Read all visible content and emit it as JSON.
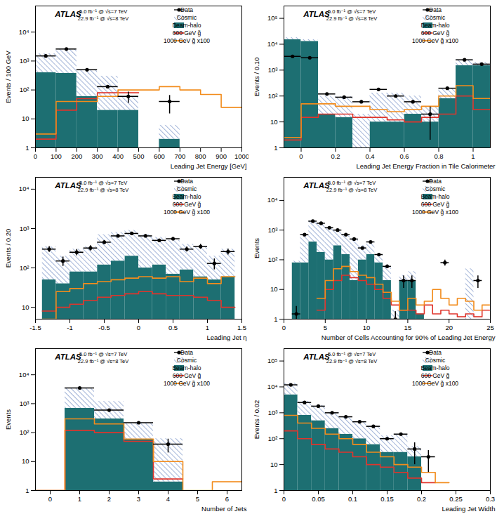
{
  "chart_data": [
    {
      "type": "histogram",
      "x_label": "Leading Jet Energy [GeV]",
      "y_label": "Events / 100 GeV",
      "log": "y",
      "stacked": true,
      "legend": "top-right",
      "annotations": [
        "ATLAS",
        "5.0 fb⁻¹ @ √s=7 TeV",
        "22.9 fb⁻¹ @ √s=8 TeV"
      ],
      "xlim": [
        0,
        1000
      ],
      "xticks": [
        0,
        100,
        200,
        300,
        400,
        500,
        600,
        700,
        800,
        900,
        1000
      ],
      "ylim": [
        1,
        80000
      ],
      "yticks": [
        1,
        10,
        {
          "value": 100,
          "label": "10²"
        },
        {
          "value": 1000,
          "label": "10³"
        },
        {
          "value": 10000,
          "label": "10⁴"
        }
      ],
      "bins": [
        0,
        100,
        200,
        300,
        400,
        500,
        600,
        700,
        800,
        900,
        1000
      ],
      "series": [
        {
          "name": "Data",
          "type": "errorbar",
          "color": "#000000",
          "marker": "circle",
          "values": [
            1500,
            2600,
            500,
            130,
            60,
            null,
            40,
            null,
            null,
            null
          ],
          "errors": [
            39,
            51,
            22,
            12,
            25,
            null,
            25,
            null,
            null,
            null
          ]
        },
        {
          "name": "Cosmic",
          "type": "bar",
          "color": "#6f8cc4",
          "line_style": "hatched",
          "values": [
            1400,
            2220,
            440,
            280,
            40,
            null,
            4,
            null,
            null,
            null
          ]
        },
        {
          "name": "Beam-halo",
          "type": "bar",
          "color": "#1d6f72",
          "values": [
            400,
            380,
            60,
            20,
            20,
            null,
            2,
            null,
            null,
            null
          ]
        },
        {
          "name": "600 GeV g̃",
          "type": "line",
          "color": "#e0352c",
          "line_style": "solid",
          "values": [
            2,
            20,
            50,
            80,
            80,
            null,
            null,
            null,
            null,
            null
          ]
        },
        {
          "name": "1000 GeV g̃ x100",
          "type": "line",
          "color": "#f28c1c",
          "line_style": "solid",
          "values": [
            3,
            40,
            40,
            60,
            100,
            100,
            130,
            100,
            70,
            25
          ]
        }
      ]
    },
    {
      "type": "histogram",
      "x_label": "Leading Jet Energy Fraction in Tile Calorimeter",
      "y_label": "Events / 0.10",
      "log": "y",
      "stacked": true,
      "legend": "top-right",
      "annotations": [
        "ATLAS",
        "5.0 fb⁻¹ @ √s=7 TeV",
        "22.9 fb⁻¹ @ √s=8 TeV"
      ],
      "xlim": [
        -0.1,
        1.1
      ],
      "xticks": [
        0,
        0.2,
        0.4,
        0.6,
        0.8,
        1
      ],
      "ylim": [
        1,
        300000
      ],
      "yticks": [
        1,
        10,
        {
          "value": 100,
          "label": "10²"
        },
        {
          "value": 1000,
          "label": "10³"
        },
        {
          "value": 10000,
          "label": "10⁴"
        },
        {
          "value": 100000,
          "label": "10⁵"
        }
      ],
      "bins": [
        -0.1,
        0,
        0.1,
        0.2,
        0.3,
        0.4,
        0.5,
        0.6,
        0.7,
        0.8,
        0.9,
        1,
        1.1
      ],
      "series": [
        {
          "name": "Data",
          "type": "errorbar",
          "color": "#000000",
          "marker": "circle",
          "values": [
            3400,
            3000,
            120,
            90,
            60,
            180,
            100,
            60,
            20,
            200,
            2500,
            1700
          ],
          "errors": [
            58,
            55,
            11,
            10,
            8,
            13,
            10,
            8,
            18,
            14,
            50,
            41
          ]
        },
        {
          "name": "Cosmic",
          "type": "bar",
          "color": "#6f8cc4",
          "line_style": "hatched",
          "values": [
            3000,
            2000,
            80,
            80,
            20,
            120,
            120,
            80,
            30,
            120,
            1000,
            500
          ]
        },
        {
          "name": "Beam-halo",
          "type": "bar",
          "color": "#1d6f72",
          "values": [
            15000,
            13000,
            20,
            15,
            null,
            10,
            10,
            20,
            10,
            80,
            1500,
            1500
          ]
        },
        {
          "name": "600 GeV g̃",
          "type": "line",
          "color": "#e0352c",
          "line_style": "solid",
          "values": [
            2,
            15,
            20,
            20,
            15,
            15,
            12,
            10,
            15,
            20,
            100,
            30
          ]
        },
        {
          "name": "1000 GeV g̃ x100",
          "type": "line",
          "color": "#f28c1c",
          "line_style": "solid",
          "values": [
            2.5,
            50,
            50,
            40,
            40,
            30,
            25,
            30,
            40,
            100,
            250,
            80
          ]
        }
      ]
    },
    {
      "type": "histogram",
      "x_label": "Leading Jet η",
      "y_label": "Events / 0.20",
      "log": "y",
      "stacked": true,
      "legend": "top-right",
      "annotations": [
        "ATLAS",
        "5.0 fb⁻¹ @ √s=7 TeV",
        "22.9 fb⁻¹ @ √s=8 TeV"
      ],
      "xlim": [
        -1.5,
        1.5
      ],
      "xticks": [
        -1.5,
        -1,
        -0.5,
        0,
        0.5,
        1,
        1.5
      ],
      "ylim": [
        5,
        20000
      ],
      "yticks": [
        10,
        {
          "value": 100,
          "label": "10²"
        },
        {
          "value": 1000,
          "label": "10³"
        },
        {
          "value": 10000,
          "label": "10⁴"
        }
      ],
      "bins": [
        -1.4,
        -1.2,
        -1,
        -0.8,
        -0.6,
        -0.4,
        -0.2,
        0,
        0.2,
        0.4,
        0.6,
        0.8,
        1,
        1.2,
        1.4
      ],
      "series": [
        {
          "name": "Data",
          "type": "errorbar",
          "color": "#000000",
          "marker": "circle",
          "values": [
            300,
            150,
            250,
            320,
            450,
            650,
            750,
            650,
            500,
            550,
            300,
            350,
            130,
            260
          ],
          "errors": [
            50,
            40,
            45,
            50,
            50,
            50,
            55,
            50,
            45,
            50,
            45,
            50,
            40,
            45
          ]
        },
        {
          "name": "Cosmic",
          "type": "bar",
          "color": "#6f8cc4",
          "line_style": "hatched",
          "values": [
            300,
            160,
            220,
            270,
            580,
            650,
            700,
            600,
            480,
            430,
            310,
            290,
            150,
            240
          ]
        },
        {
          "name": "Beam-halo",
          "type": "bar",
          "color": "#1d6f72",
          "values": [
            50,
            40,
            80,
            80,
            120,
            150,
            200,
            100,
            120,
            70,
            90,
            60,
            50,
            60
          ]
        },
        {
          "name": "600 GeV g̃",
          "type": "line",
          "color": "#e0352c",
          "line_style": "solid",
          "values": [
            8,
            10,
            12,
            15,
            18,
            20,
            22,
            25,
            22,
            20,
            20,
            18,
            15,
            10
          ]
        },
        {
          "name": "1000 GeV g̃ x100",
          "type": "line",
          "color": "#f28c1c",
          "line_style": "solid",
          "values": [
            5,
            25,
            30,
            40,
            45,
            50,
            55,
            60,
            55,
            60,
            45,
            55,
            40,
            60
          ]
        }
      ]
    },
    {
      "type": "histogram",
      "x_label": "Number of Cells Accounting for 90% of Leading Jet Energy",
      "y_label": "Events",
      "log": "y",
      "stacked": true,
      "legend": "top-right",
      "annotations": [
        "ATLAS",
        "5.0 fb⁻¹ @ √s=7 TeV",
        "22.9 fb⁻¹ @ √s=8 TeV"
      ],
      "xlim": [
        0,
        25
      ],
      "xticks": [
        0,
        5,
        10,
        15,
        20,
        25
      ],
      "ylim": [
        1,
        60000
      ],
      "yticks": [
        1,
        10,
        {
          "value": 100,
          "label": "10²"
        },
        {
          "value": 1000,
          "label": "10³"
        },
        {
          "value": 10000,
          "label": "10⁴"
        }
      ],
      "bins": [
        0,
        1,
        2,
        3,
        4,
        5,
        6,
        7,
        8,
        9,
        10,
        11,
        12,
        13,
        14,
        15,
        16,
        17,
        18,
        19,
        20,
        21,
        22,
        23,
        24,
        25
      ],
      "series": [
        {
          "name": "Data",
          "type": "errorbar",
          "color": "#000000",
          "marker": "circle",
          "values": [
            null,
            1.5,
            700,
            2000,
            1700,
            1200,
            1000,
            700,
            500,
            250,
            400,
            150,
            60,
            1,
            20,
            20,
            null,
            null,
            null,
            80,
            null,
            null,
            null,
            20,
            null
          ],
          "errors": [
            null,
            1.2,
            26,
            45,
            41,
            35,
            32,
            26,
            22,
            16,
            20,
            12,
            8,
            0.8,
            9,
            9,
            null,
            null,
            null,
            18,
            null,
            null,
            null,
            9,
            null
          ]
        },
        {
          "name": "Cosmic",
          "type": "bar",
          "color": "#6f8cc4",
          "line_style": "hatched",
          "values": [
            null,
            10,
            620,
            1600,
            1520,
            1100,
            700,
            550,
            480,
            200,
            250,
            70,
            40,
            2,
            10,
            20,
            null,
            null,
            null,
            null,
            null,
            null,
            50,
            null,
            null
          ]
        },
        {
          "name": "Beam-halo",
          "type": "bar",
          "color": "#1d6f72",
          "values": [
            null,
            80,
            80,
            400,
            180,
            100,
            300,
            150,
            20,
            100,
            150,
            80,
            20,
            null,
            20,
            20,
            1.5,
            null,
            null,
            null,
            null,
            null,
            null,
            null,
            null
          ]
        },
        {
          "name": "600 GeV g̃",
          "type": "line",
          "color": "#e0352c",
          "line_style": "solid",
          "values": [
            null,
            null,
            null,
            null,
            2,
            10,
            20,
            30,
            25,
            20,
            15,
            10,
            5,
            3,
            2,
            2,
            1.5,
            3,
            1.5,
            2,
            1.5,
            1.2,
            1.5,
            1.2,
            2
          ]
        },
        {
          "name": "1000 GeV g̃ x100",
          "type": "line",
          "color": "#f28c1c",
          "line_style": "solid",
          "values": [
            null,
            null,
            null,
            null,
            5,
            20,
            50,
            60,
            40,
            30,
            25,
            15,
            8,
            4,
            2,
            5,
            3,
            4,
            10,
            5,
            3,
            5,
            4,
            2,
            3
          ]
        }
      ]
    },
    {
      "type": "histogram",
      "x_label": "Number of Jets",
      "y_label": "Events",
      "log": "y",
      "stacked": true,
      "legend": "top-right",
      "annotations": [
        "ATLAS",
        "5.0 fb⁻¹ @ √s=7 TeV",
        "22.9 fb⁻¹ @ √s=8 TeV"
      ],
      "xlim": [
        -0.5,
        6.5
      ],
      "xticks": [
        0,
        1,
        2,
        3,
        4,
        5,
        6
      ],
      "ylim": [
        1,
        80000
      ],
      "yticks": [
        1,
        10,
        {
          "value": 100,
          "label": "10²"
        },
        {
          "value": 1000,
          "label": "10³"
        },
        {
          "value": 10000,
          "label": "10⁴"
        }
      ],
      "bins": [
        -0.5,
        0.5,
        1.5,
        2.5,
        3.5,
        4.5,
        5.5,
        6.5
      ],
      "series": [
        {
          "name": "Data",
          "type": "errorbar",
          "color": "#000000",
          "marker": "circle",
          "values": [
            null,
            3500,
            600,
            220,
            40,
            null,
            null
          ],
          "errors": [
            null,
            59,
            25,
            15,
            20,
            null,
            null
          ]
        },
        {
          "name": "Cosmic",
          "type": "bar",
          "color": "#6f8cc4",
          "line_style": "hatched",
          "values": [
            null,
            2800,
            900,
            150,
            60,
            null,
            null
          ]
        },
        {
          "name": "Beam-halo",
          "type": "bar",
          "color": "#1d6f72",
          "values": [
            null,
            700,
            300,
            60,
            2,
            null,
            null
          ]
        },
        {
          "name": "600 GeV g̃",
          "type": "line",
          "color": "#e0352c",
          "line_style": "solid",
          "values": [
            1,
            120,
            100,
            50,
            2.5,
            null,
            null
          ]
        },
        {
          "name": "1000 GeV g̃ x100",
          "type": "line",
          "color": "#f28c1c",
          "line_style": "solid",
          "values": [
            1,
            300,
            200,
            60,
            10,
            1,
            2
          ]
        }
      ]
    },
    {
      "type": "histogram",
      "x_label": "Leading Jet Width",
      "y_label": "Events / 0.02",
      "log": "y",
      "stacked": true,
      "legend": "top-right",
      "annotations": [
        "ATLAS",
        "5.0 fb⁻¹ @ √s=7 TeV",
        "22.9 fb⁻¹ @ √s=8 TeV"
      ],
      "xlim": [
        0,
        0.3
      ],
      "xticks": [
        0,
        0.05,
        0.1,
        0.15,
        0.2,
        0.25,
        0.3
      ],
      "ylim": [
        1,
        300000
      ],
      "yticks": [
        1,
        10,
        {
          "value": 100,
          "label": "10²"
        },
        {
          "value": 1000,
          "label": "10³"
        },
        {
          "value": 10000,
          "label": "10⁴"
        },
        {
          "value": 100000,
          "label": "10⁵"
        }
      ],
      "bins": [
        0,
        0.02,
        0.04,
        0.06,
        0.08,
        0.1,
        0.12,
        0.14,
        0.16,
        0.18,
        0.2,
        0.22,
        0.24,
        0.26,
        0.28,
        0.3
      ],
      "series": [
        {
          "name": "Data",
          "type": "errorbar",
          "color": "#000000",
          "marker": "circle",
          "values": [
            12000,
            2500,
            1800,
            1000,
            700,
            450,
            300,
            100,
            150,
            40,
            20,
            null,
            null,
            null,
            null
          ],
          "errors": [
            110,
            50,
            42,
            32,
            26,
            21,
            17,
            10,
            12,
            30,
            15,
            null,
            null,
            null,
            null
          ]
        },
        {
          "name": "Cosmic",
          "type": "bar",
          "color": "#6f8cc4",
          "line_style": "hatched",
          "values": [
            9000,
            2000,
            1400,
            800,
            550,
            330,
            240,
            100,
            120,
            30,
            null,
            null,
            null,
            null,
            null
          ]
        },
        {
          "name": "Beam-halo",
          "type": "bar",
          "color": "#1d6f72",
          "values": [
            5000,
            800,
            500,
            250,
            150,
            100,
            60,
            30,
            30,
            20,
            null,
            null,
            null,
            null,
            null
          ]
        },
        {
          "name": "600 GeV g̃",
          "type": "line",
          "color": "#e0352c",
          "line_style": "solid",
          "values": [
            200,
            100,
            60,
            40,
            30,
            20,
            10,
            8,
            5,
            3,
            2,
            null,
            null,
            null,
            null
          ]
        },
        {
          "name": "1000 GeV g̃ x100",
          "type": "line",
          "color": "#f28c1c",
          "line_style": "solid",
          "values": [
            800,
            400,
            250,
            150,
            100,
            60,
            30,
            20,
            10,
            8,
            5,
            2,
            null,
            null,
            null
          ]
        }
      ]
    }
  ]
}
